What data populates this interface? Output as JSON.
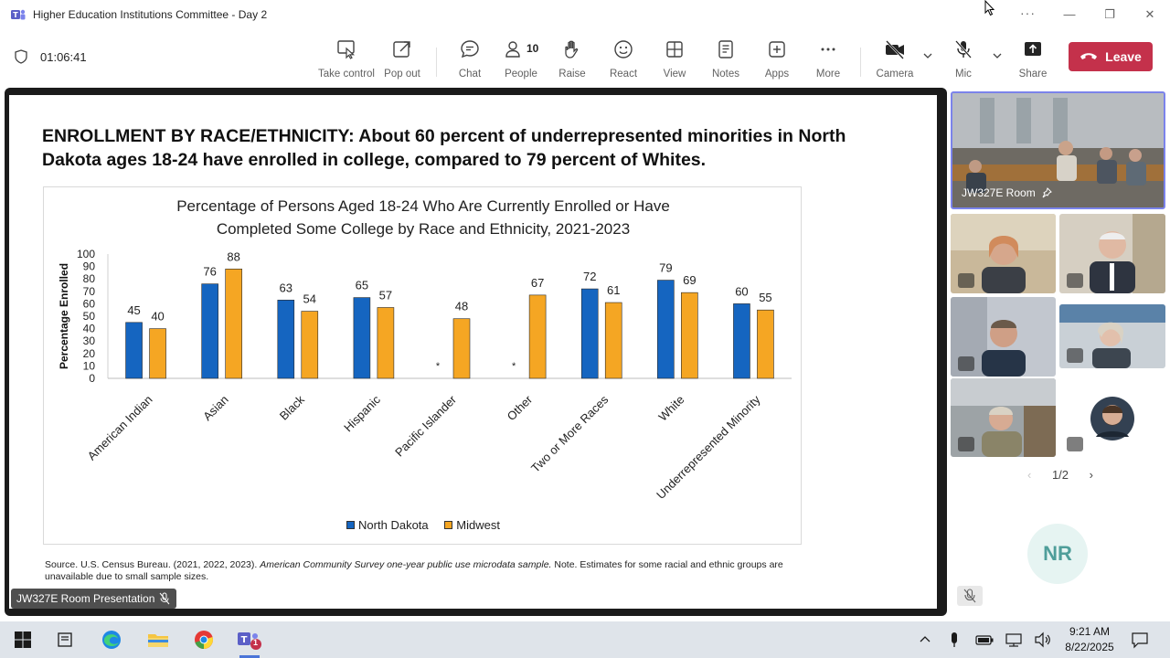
{
  "window": {
    "title": "Higher Education Institutions Committee - Day 2",
    "more": "···",
    "minimize": "—",
    "maximize": "❐",
    "close": "✕"
  },
  "toolbar": {
    "timer": "01:06:41",
    "items": {
      "take_control": "Take control",
      "pop_out": "Pop out",
      "chat": "Chat",
      "people": "People",
      "people_count": "10",
      "raise": "Raise",
      "react": "React",
      "view": "View",
      "notes": "Notes",
      "apps": "Apps",
      "more": "More",
      "camera": "Camera",
      "mic": "Mic",
      "share": "Share"
    },
    "leave": "Leave",
    "leave_color": "#c4314b"
  },
  "slide": {
    "heading": "ENROLLMENT BY RACE/ETHNICITY: About 60 percent of underrepresented minorities in North Dakota ages 18-24 have enrolled in college, compared to 79 percent of Whites.",
    "source_prefix": "Source. U.S. Census Bureau. (2021, 2022, 2023). ",
    "source_italic": "American Community Survey one-year public use microdata sample.",
    "source_suffix": " Note. Estimates for some racial and ethnic groups are unavailable due to small sample sizes."
  },
  "chart_data": {
    "type": "bar",
    "title_line1": "Percentage of Persons Aged 18-24 Who Are Currently Enrolled or Have",
    "title_line2": "Completed Some College by Race and Ethnicity, 2021-2023",
    "ylabel": "Percentage Enrolled",
    "xlabel": "",
    "ylim": [
      0,
      100
    ],
    "yticks": [
      0,
      10,
      20,
      30,
      40,
      50,
      60,
      70,
      80,
      90,
      100
    ],
    "categories": [
      "American Indian",
      "Asian",
      "Black",
      "Hispanic",
      "Pacific Islander",
      "Other",
      "Two or More Races",
      "White",
      "Underrepresented Minority"
    ],
    "series": [
      {
        "name": "North Dakota",
        "color": "#1565c0",
        "values": [
          45,
          76,
          63,
          65,
          null,
          null,
          72,
          79,
          60
        ]
      },
      {
        "name": "Midwest",
        "color": "#f5a623",
        "values": [
          40,
          88,
          54,
          57,
          48,
          67,
          61,
          69,
          55
        ]
      }
    ],
    "missing_marker": "*",
    "legend_position": "bottom-center"
  },
  "participants": {
    "main_tile_name": "JW327E Room",
    "presenter": "JW327E Room Presentation",
    "pager": "1/2",
    "initials": "NR"
  },
  "taskbar": {
    "time": "9:21 AM",
    "date": "8/22/2025",
    "teams_badge": "1"
  }
}
